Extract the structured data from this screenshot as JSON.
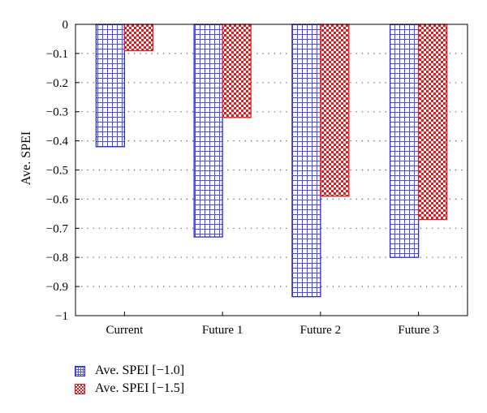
{
  "chart_data": {
    "type": "bar",
    "ylabel": "Ave. SPEI",
    "xlabel": "",
    "ylim": [
      -1,
      0
    ],
    "yticks": [
      0,
      -0.1,
      -0.2,
      -0.3,
      -0.4,
      -0.5,
      -0.6,
      -0.7,
      -0.8,
      -0.9,
      -1
    ],
    "ytick_labels": [
      "0",
      "−0.1",
      "−0.2",
      "−0.3",
      "−0.4",
      "−0.5",
      "−0.6",
      "−0.7",
      "−0.8",
      "−0.9",
      "−1"
    ],
    "grid": "horizontal dotted",
    "categories": [
      "Current",
      "Future 1",
      "Future 2",
      "Future 3"
    ],
    "series": [
      {
        "name": "Ave. SPEI [−1.0]",
        "values": [
          -0.42,
          -0.73,
          -0.935,
          -0.8
        ],
        "color": "#2b2bd6",
        "pattern": "grid"
      },
      {
        "name": "Ave. SPEI [−1.5]",
        "values": [
          -0.09,
          -0.32,
          -0.59,
          -0.67
        ],
        "color": "#e31a1c",
        "pattern": "checker"
      }
    ],
    "legend_position": "bottom-left"
  }
}
